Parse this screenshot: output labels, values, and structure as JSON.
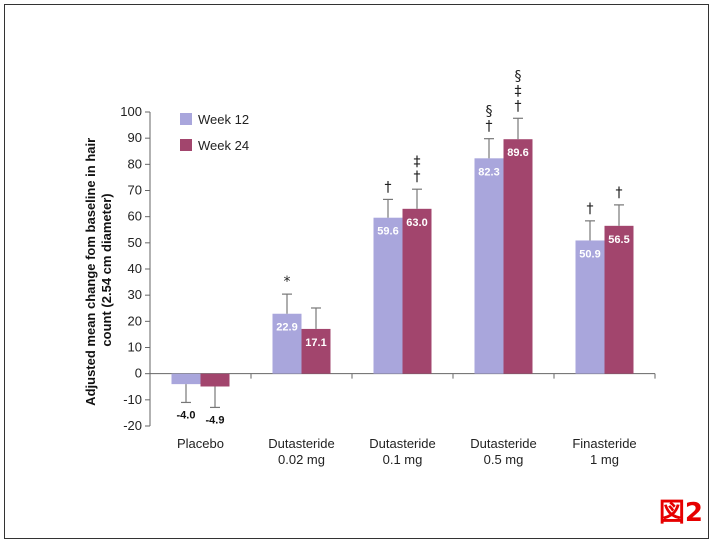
{
  "chart_data": {
    "type": "bar",
    "categories": [
      [
        "Placebo"
      ],
      [
        "Dutasteride",
        "0.02 mg"
      ],
      [
        "Dutasteride",
        "0.1 mg"
      ],
      [
        "Dutasteride",
        "0.5 mg"
      ],
      [
        "Finasteride",
        "1 mg"
      ]
    ],
    "series": [
      {
        "name": "Week 12",
        "color": "#a9a6dc",
        "values": [
          -4.0,
          22.9,
          59.6,
          82.3,
          50.9
        ],
        "errors": [
          7,
          7.5,
          7,
          7.5,
          7.5
        ],
        "labels": [
          "-4.0",
          "22.9",
          "59.6",
          "82.3",
          "50.9"
        ],
        "significance": [
          [],
          [
            "*"
          ],
          [
            "†"
          ],
          [
            "†",
            "§"
          ],
          [
            "†"
          ]
        ]
      },
      {
        "name": "Week 24",
        "color": "#a2456d",
        "values": [
          -4.9,
          17.1,
          63.0,
          89.6,
          56.5
        ],
        "errors": [
          8,
          8,
          7.5,
          8,
          8
        ],
        "labels": [
          "-4.9",
          "17.1",
          "63.0",
          "89.6",
          "56.5"
        ],
        "significance": [
          [],
          [],
          [
            "†",
            "‡"
          ],
          [
            "†",
            "‡",
            "§"
          ],
          [
            "†"
          ]
        ]
      }
    ],
    "ylabel": "Adjusted mean change fom baseline in hair count (2.54 cm diameter)",
    "ylabel_lines": [
      "Adjusted mean change fom baseline in hair",
      "count (2.54 cm diameter)"
    ],
    "ylim": [
      -20,
      100
    ],
    "yticks": [
      -20,
      -10,
      0,
      10,
      20,
      30,
      40,
      50,
      60,
      70,
      80,
      90,
      100
    ],
    "legend_position": "top-left",
    "grid": false
  },
  "badge": "図2"
}
